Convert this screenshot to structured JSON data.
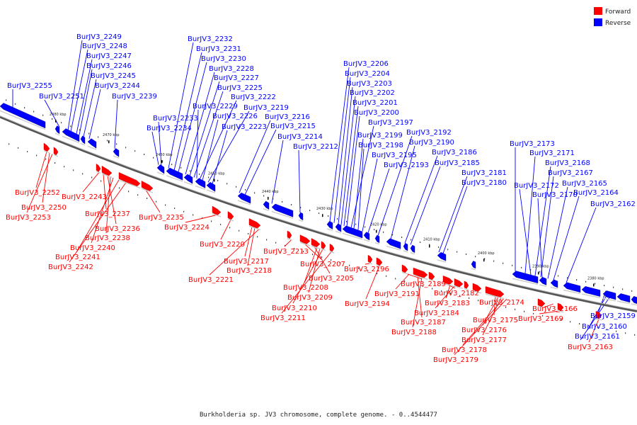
{
  "legend": [
    {
      "label": "Forward",
      "color": "#ff0000"
    },
    {
      "label": "Reverse",
      "color": "#0000ff"
    }
  ],
  "caption": "Burkholderia sp. JV3 chromosome, complete genome. - 0..4544477",
  "colors": {
    "forward": "#ff0000",
    "reverse": "#0000ff",
    "backbone": "#777777"
  },
  "scale_labels": [
    "2480 kbp",
    "2470 kbp",
    "2460 kbp",
    "2450 kbp",
    "2440 kbp",
    "2430 kbp",
    "2420 kbp",
    "2410 kbp",
    "2400 kbp",
    "2390 kbp",
    "2380 kbp"
  ],
  "reverse_genes": [
    "BurJV3_2255",
    "BurJV3_2251",
    "BurJV3_2249",
    "BurJV3_2248",
    "BurJV3_2247",
    "BurJV3_2246",
    "BurJV3_2245",
    "BurJV3_2244",
    "BurJV3_2239",
    "BurJV3_2232",
    "BurJV3_2231",
    "BurJV3_2230",
    "BurJV3_2228",
    "BurJV3_2227",
    "BurJV3_2225",
    "BurJV3_2222",
    "BurJV3_2219",
    "BurJV3_2216",
    "BurJV3_2215",
    "BurJV3_2214",
    "BurJV3_2212",
    "BurJV3_2233",
    "BurJV3_2234",
    "BurJV3_2229",
    "BurJV3_2226",
    "BurJV3_2223",
    "BurJV3_2206",
    "BurJV3_2204",
    "BurJV3_2203",
    "BurJV3_2202",
    "BurJV3_2201",
    "BurJV3_2200",
    "BurJV3_2197",
    "BurJV3_2199",
    "BurJV3_2198",
    "BurJV3_2195",
    "BurJV3_2193",
    "BurJV3_2192",
    "BurJV3_2190",
    "BurJV3_2186",
    "BurJV3_2185",
    "BurJV3_2181",
    "BurJV3_2180",
    "BurJV3_2173",
    "BurJV3_2171",
    "BurJV3_2168",
    "BurJV3_2167",
    "BurJV3_2172",
    "BurJV3_2165",
    "BurJV3_2170",
    "BurJV3_2164",
    "BurJV3_2162",
    "BurJV3_2159",
    "BurJV3_2160",
    "BurJV3_2161"
  ],
  "forward_genes": [
    "BurJV3_2252",
    "BurJV3_2250",
    "BurJV3_2253",
    "BurJV3_2243",
    "BurJV3_2237",
    "BurJV3_2236",
    "BurJV3_2238",
    "BurJV3_2240",
    "BurJV3_2241",
    "BurJV3_2242",
    "BurJV3_2235",
    "BurJV3_2224",
    "BurJV3_2220",
    "BurJV3_2217",
    "BurJV3_2218",
    "BurJV3_2221",
    "BurJV3_2213",
    "BurJV3_2207",
    "BurJV3_2205",
    "BurJV3_2208",
    "BurJV3_2209",
    "BurJV3_2210",
    "BurJV3_2211",
    "BurJV3_2196",
    "BurJV3_2194",
    "BurJV3_2189",
    "BurJV3_2191",
    "BurJV3_2187",
    "BurJV3_2188",
    "BurJV3_2182",
    "BurJV3_2183",
    "BurJV3_2184",
    "BurJV3_2174",
    "BurJV3_2175",
    "BurJV3_2176",
    "BurJV3_2177",
    "BurJV3_2178",
    "BurJV3_2179",
    "BurJV3_2166",
    "BurJV3_2169",
    "BurJV3_2163"
  ]
}
